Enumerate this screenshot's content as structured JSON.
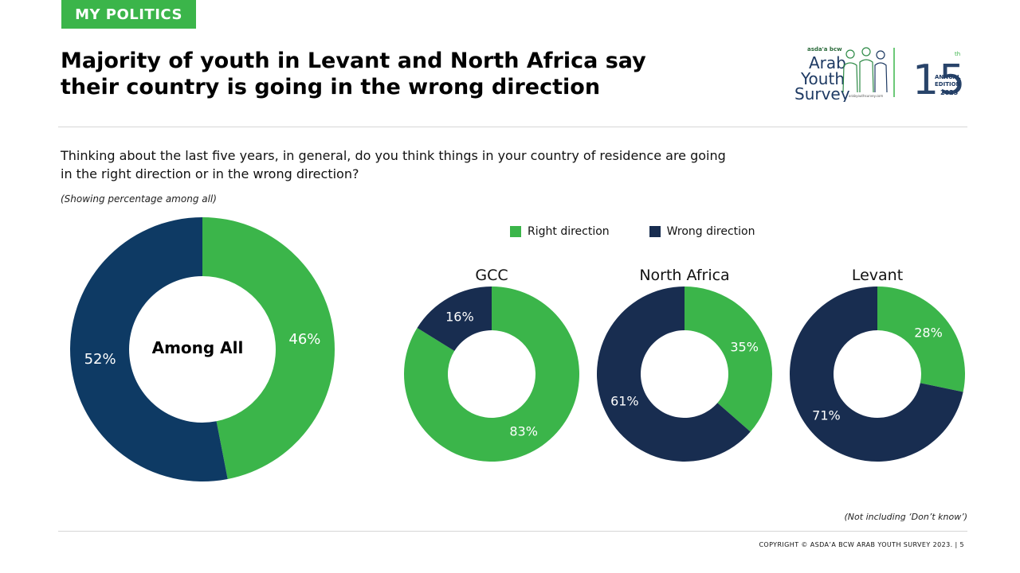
{
  "header": {
    "tag": "MY POLITICS",
    "title_line1": "Majority of youth in Levant and North Africa say",
    "title_line2": "their country is going in the wrong direction"
  },
  "logo": {
    "brand_small": "asda'a bcw",
    "word1": "Arab",
    "word2": "Youth",
    "word3": "Survey",
    "url": "arabyouthsurvey.com",
    "edition_number": "15",
    "edition_suffix": "th",
    "edition_line1": "ANNUAL",
    "edition_line2": "EDITION",
    "edition_year": "2023"
  },
  "question": {
    "line1": "Thinking about the last five years, in general, do you think things in your country of residence are going",
    "line2": "in the right direction or in the wrong direction?",
    "note": "(Showing percentage among all)"
  },
  "legend": {
    "right": "Right direction",
    "wrong": "Wrong direction"
  },
  "colors": {
    "right": "#3bb54a",
    "wrong_main": "#0e3a64",
    "wrong_small": "#182d50"
  },
  "chart_data": [
    {
      "type": "pie",
      "title": "",
      "center_label": "Among All",
      "series": [
        {
          "name": "Right direction",
          "value": 46
        },
        {
          "name": "Wrong direction",
          "value": 52
        }
      ]
    },
    {
      "type": "pie",
      "title": "GCC",
      "series": [
        {
          "name": "Right direction",
          "value": 83
        },
        {
          "name": "Wrong direction",
          "value": 16
        }
      ]
    },
    {
      "type": "pie",
      "title": "North Africa",
      "series": [
        {
          "name": "Right direction",
          "value": 35
        },
        {
          "name": "Wrong direction",
          "value": 61
        }
      ]
    },
    {
      "type": "pie",
      "title": "Levant",
      "series": [
        {
          "name": "Right direction",
          "value": 28
        },
        {
          "name": "Wrong direction",
          "value": 71
        }
      ]
    }
  ],
  "footer": {
    "footnote": "(Not including ‘Don’t know’)",
    "copyright": "COPYRIGHT © ASDA’A BCW ARAB YOUTH SURVEY 2023. | 5"
  }
}
